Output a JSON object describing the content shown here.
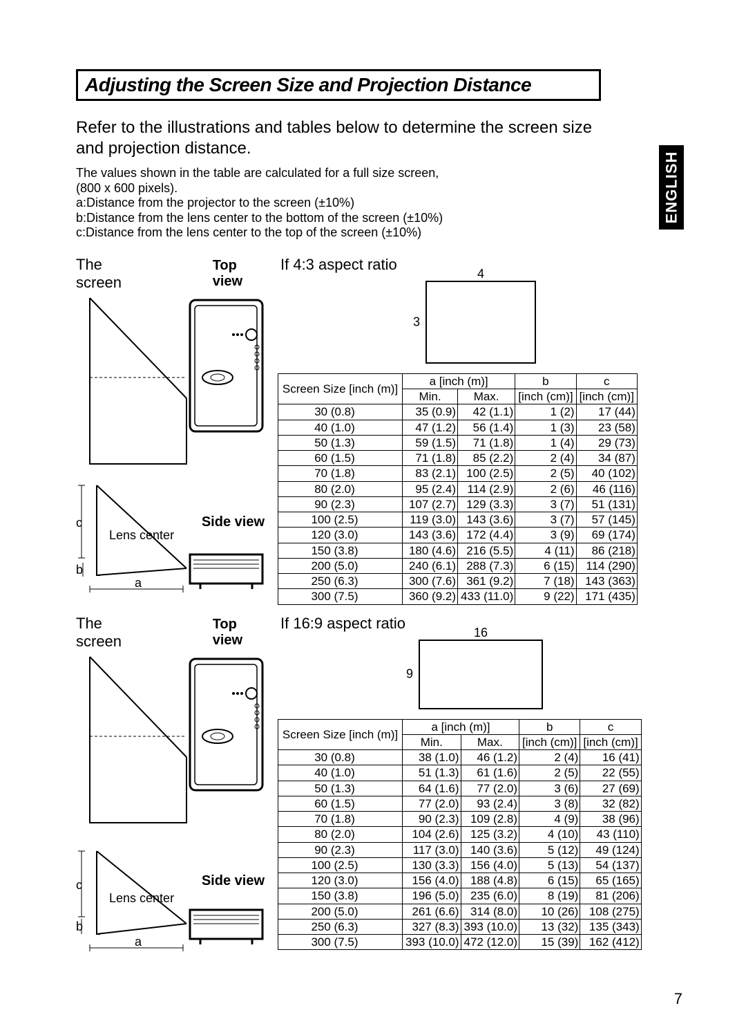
{
  "title": "Adjusting the Screen Size and Projection Distance",
  "intro": "Refer to the illustrations and tables below to determine the screen size and projection distance.",
  "note_main": "The values shown in the table are calculated for a full size screen,",
  "note_res": " (800 x 600 pixels).",
  "note_a": "a:Distance from the projector to the screen (±10%)",
  "note_b": "b:Distance from the lens center to the bottom of the screen (±10%)",
  "note_c": "c:Distance from the lens center to the top of the screen (±10%)",
  "english_label": "ENGLISH",
  "the_screen": "The screen",
  "top_view": "Top view",
  "side_view": "Side view",
  "lens_center": "Lens center",
  "dim_a": "a",
  "dim_b": "b",
  "dim_c": "c",
  "aspect_43": {
    "title": "If 4:3 aspect ratio",
    "w": "4",
    "h": "3",
    "header_size": "Screen Size [inch (m)]",
    "header_a": "a [inch (m)]",
    "header_min": "Min.",
    "header_max": "Max.",
    "header_b": "b",
    "header_b_unit": "[inch (cm)]",
    "header_c": "c",
    "header_c_unit": "[inch (cm)]",
    "rows": [
      {
        "size": "30 (0.8)",
        "min": "35 (0.9)",
        "max": "42 (1.1)",
        "b": "1 (2)",
        "c": "17 (44)"
      },
      {
        "size": "40 (1.0)",
        "min": "47 (1.2)",
        "max": "56 (1.4)",
        "b": "1 (3)",
        "c": "23 (58)"
      },
      {
        "size": "50 (1.3)",
        "min": "59 (1.5)",
        "max": "71 (1.8)",
        "b": "1 (4)",
        "c": "29 (73)"
      },
      {
        "size": "60 (1.5)",
        "min": "71 (1.8)",
        "max": "85 (2.2)",
        "b": "2 (4)",
        "c": "34 (87)"
      },
      {
        "size": "70 (1.8)",
        "min": "83 (2.1)",
        "max": "100 (2.5)",
        "b": "2 (5)",
        "c": "40 (102)"
      },
      {
        "size": "80 (2.0)",
        "min": "95 (2.4)",
        "max": "114 (2.9)",
        "b": "2 (6)",
        "c": "46 (116)"
      },
      {
        "size": "90 (2.3)",
        "min": "107 (2.7)",
        "max": "129 (3.3)",
        "b": "3 (7)",
        "c": "51 (131)"
      },
      {
        "size": "100 (2.5)",
        "min": "119 (3.0)",
        "max": "143 (3.6)",
        "b": "3 (7)",
        "c": "57 (145)"
      },
      {
        "size": "120 (3.0)",
        "min": "143 (3.6)",
        "max": "172 (4.4)",
        "b": "3 (9)",
        "c": "69 (174)"
      },
      {
        "size": "150 (3.8)",
        "min": "180 (4.6)",
        "max": "216 (5.5)",
        "b": "4 (11)",
        "c": "86 (218)"
      },
      {
        "size": "200 (5.0)",
        "min": "240 (6.1)",
        "max": "288 (7.3)",
        "b": "6 (15)",
        "c": "114 (290)"
      },
      {
        "size": "250 (6.3)",
        "min": "300 (7.6)",
        "max": "361 (9.2)",
        "b": "7 (18)",
        "c": "143 (363)"
      },
      {
        "size": "300 (7.5)",
        "min": "360 (9.2)",
        "max": "433 (11.0)",
        "b": "9 (22)",
        "c": "171 (435)"
      }
    ]
  },
  "aspect_169": {
    "title": "If 16:9 aspect ratio",
    "w": "16",
    "h": "9",
    "rows": [
      {
        "size": "30 (0.8)",
        "min": "38 (1.0)",
        "max": "46 (1.2)",
        "b": "2 (4)",
        "c": "16 (41)"
      },
      {
        "size": "40 (1.0)",
        "min": "51 (1.3)",
        "max": "61 (1.6)",
        "b": "2 (5)",
        "c": "22 (55)"
      },
      {
        "size": "50 (1.3)",
        "min": "64 (1.6)",
        "max": "77 (2.0)",
        "b": "3 (6)",
        "c": "27 (69)"
      },
      {
        "size": "60 (1.5)",
        "min": "77 (2.0)",
        "max": "93 (2.4)",
        "b": "3 (8)",
        "c": "32 (82)"
      },
      {
        "size": "70 (1.8)",
        "min": "90 (2.3)",
        "max": "109 (2.8)",
        "b": "4 (9)",
        "c": "38 (96)"
      },
      {
        "size": "80 (2.0)",
        "min": "104 (2.6)",
        "max": "125 (3.2)",
        "b": "4 (10)",
        "c": "43 (110)"
      },
      {
        "size": "90 (2.3)",
        "min": "117 (3.0)",
        "max": "140 (3.6)",
        "b": "5 (12)",
        "c": "49 (124)"
      },
      {
        "size": "100 (2.5)",
        "min": "130 (3.3)",
        "max": "156 (4.0)",
        "b": "5 (13)",
        "c": "54 (137)"
      },
      {
        "size": "120 (3.0)",
        "min": "156 (4.0)",
        "max": "188 (4.8)",
        "b": "6 (15)",
        "c": "65 (165)"
      },
      {
        "size": "150 (3.8)",
        "min": "196 (5.0)",
        "max": "235 (6.0)",
        "b": "8 (19)",
        "c": "81 (206)"
      },
      {
        "size": "200 (5.0)",
        "min": "261 (6.6)",
        "max": "314 (8.0)",
        "b": "10 (26)",
        "c": "108 (275)"
      },
      {
        "size": "250 (6.3)",
        "min": "327 (8.3)",
        "max": "393 (10.0)",
        "b": "13 (32)",
        "c": "135 (343)"
      },
      {
        "size": "300 (7.5)",
        "min": "393 (10.0)",
        "max": "472 (12.0)",
        "b": "15 (39)",
        "c": "162 (412)"
      }
    ]
  },
  "page_number": "7",
  "colors": {
    "fg": "#000000",
    "bg": "#ffffff"
  }
}
